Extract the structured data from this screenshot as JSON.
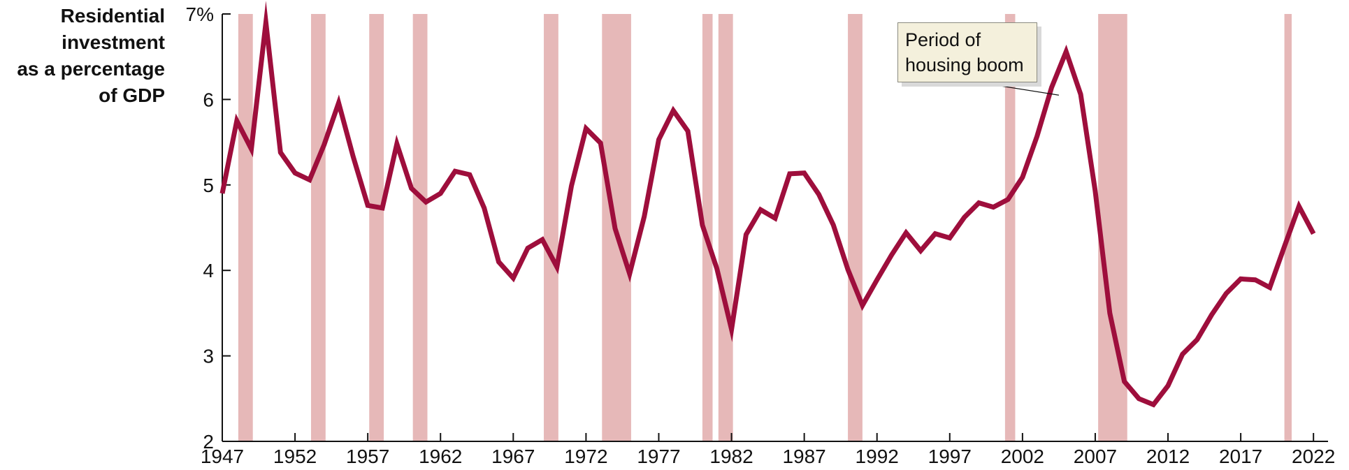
{
  "chart_data": {
    "type": "line",
    "ylabel_lines": [
      "Residential",
      "investment",
      "as a percentage",
      "of GDP"
    ],
    "ylim": [
      2,
      7
    ],
    "yticks": [
      2,
      3,
      4,
      5,
      6,
      7
    ],
    "ytick_labels": [
      "2",
      "3",
      "4",
      "5",
      "6",
      "7%"
    ],
    "xlim": [
      1947,
      2023
    ],
    "xticks": [
      1947,
      1952,
      1957,
      1962,
      1967,
      1972,
      1977,
      1982,
      1987,
      1992,
      1997,
      2002,
      2007,
      2012,
      2017,
      2022
    ],
    "xtick_labels": [
      "1947",
      "1952",
      "1957",
      "1962",
      "1967",
      "1972",
      "1977",
      "1982",
      "1987",
      "1992",
      "1997",
      "2002",
      "2007",
      "2012",
      "2017",
      "2022"
    ],
    "series": [
      {
        "x": [
          1947,
          1948,
          1949,
          1950,
          1951,
          1952,
          1953,
          1954,
          1955,
          1956,
          1957,
          1958,
          1959,
          1960,
          1961,
          1962,
          1963,
          1964,
          1965,
          1966,
          1967,
          1968,
          1969,
          1970,
          1971,
          1972,
          1973,
          1974,
          1975,
          1976,
          1977,
          1978,
          1979,
          1980,
          1981,
          1982,
          1983,
          1984,
          1985,
          1986,
          1987,
          1988,
          1989,
          1990,
          1991,
          1992,
          1993,
          1994,
          1995,
          1996,
          1997,
          1998,
          1999,
          2000,
          2001,
          2002,
          2003,
          2004,
          2005,
          2006,
          2007,
          2008,
          2009,
          2010,
          2011,
          2012,
          2013,
          2014,
          2015,
          2016,
          2017,
          2018,
          2019,
          2020,
          2021,
          2022
        ],
        "y": [
          4.9,
          5.75,
          5.42,
          6.9,
          5.38,
          5.14,
          5.06,
          5.47,
          5.96,
          5.33,
          4.76,
          4.73,
          5.48,
          4.96,
          4.8,
          4.9,
          5.16,
          5.12,
          4.73,
          4.1,
          3.91,
          4.26,
          4.36,
          4.04,
          4.99,
          5.66,
          5.49,
          4.49,
          3.96,
          4.63,
          5.53,
          5.87,
          5.63,
          4.53,
          4.02,
          3.31,
          4.42,
          4.71,
          4.61,
          5.13,
          5.14,
          4.89,
          4.53,
          4.01,
          3.59,
          3.89,
          4.18,
          4.44,
          4.23,
          4.43,
          4.38,
          4.62,
          4.79,
          4.74,
          4.83,
          5.09,
          5.57,
          6.14,
          6.56,
          6.06,
          4.93,
          3.5,
          2.7,
          2.5,
          2.43,
          2.65,
          3.02,
          3.19,
          3.48,
          3.73,
          3.9,
          3.89,
          3.8,
          4.28,
          4.75,
          4.43
        ],
        "color": "#9e0e3c"
      }
    ],
    "recessions": [
      [
        1948.1,
        1949.1
      ],
      [
        1953.1,
        1954.1
      ],
      [
        1957.1,
        1958.1
      ],
      [
        1960.1,
        1961.1
      ],
      [
        1969.1,
        1970.1
      ],
      [
        1973.1,
        1975.1
      ],
      [
        1980.0,
        1980.7
      ],
      [
        1981.1,
        1982.1
      ],
      [
        1990.0,
        1991.0
      ],
      [
        2000.8,
        2001.5
      ],
      [
        2007.2,
        2009.2
      ],
      [
        2020.0,
        2020.5
      ]
    ],
    "recession_color": "#e6b8b8",
    "annotation": {
      "text": "Period of\nhousing boom",
      "target": [
        2004.5,
        6.05
      ]
    },
    "grid": false
  }
}
